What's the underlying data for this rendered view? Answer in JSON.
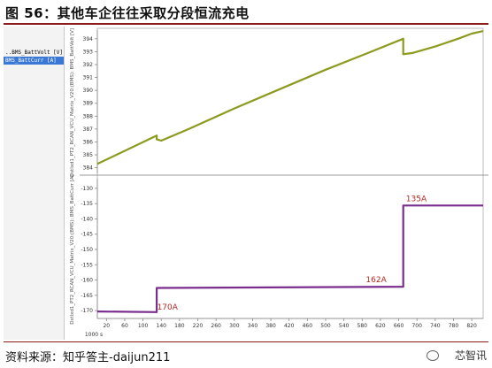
{
  "header": {
    "title": "图 56：其他车企往往采取分段恒流充电"
  },
  "footer": {
    "source": "资料来源：知乎答主-daijun211",
    "watermark": "芯智讯"
  },
  "signal_list": {
    "items": [
      "..BMS_BattVolt [V]",
      "BMS_BattCurr [A]"
    ],
    "selected_index": 1
  },
  "colors": {
    "voltage": "#8c9a1e",
    "current": "#7b2d8e",
    "rule": "#8b1a1a",
    "label": "#b5281f"
  },
  "chart_data": [
    {
      "type": "line",
      "ylabel": "Dstlxd1_PT2_RCAN_VCU_Matrix_V20:(BMS): BMS_BattVolt [V]",
      "ylim": [
        383.7,
        394.4
      ],
      "yticks": [
        384,
        385,
        386,
        387,
        388,
        389,
        390,
        391,
        392,
        393,
        394
      ],
      "xlim": [
        0,
        845
      ],
      "series": [
        {
          "x": [
            0,
            130,
            130,
            140,
            200,
            300,
            400,
            500,
            600,
            670,
            670,
            690,
            740,
            790,
            820,
            845
          ],
          "y": [
            384.3,
            386.5,
            386.2,
            386.1,
            387.0,
            388.6,
            390.1,
            391.6,
            393.0,
            394.0,
            392.8,
            392.9,
            393.4,
            394.0,
            394.4,
            394.6
          ]
        }
      ]
    },
    {
      "type": "line",
      "ylabel": "Dstlxd1_PT2_RCAN_VCU_Matrix_V20:(BMS): BMS_BattCurr [A]",
      "ylim": [
        -172,
        -128
      ],
      "yticks": [
        -130,
        -135,
        -140,
        -145,
        -150,
        -155,
        -160,
        -165,
        -170
      ],
      "xlim": [
        0,
        845
      ],
      "xticks": [
        20,
        60,
        100,
        140,
        180,
        220,
        260,
        300,
        340,
        380,
        420,
        460,
        500,
        540,
        580,
        620,
        660,
        700,
        740,
        780,
        820
      ],
      "xlabel": "1000 s",
      "series": [
        {
          "x": [
            0,
            130,
            130,
            670,
            670,
            845
          ],
          "y": [
            -170.3,
            -170.5,
            -162.6,
            -162.2,
            -135.6,
            -135.6
          ]
        }
      ],
      "annotations": [
        {
          "text": "170A",
          "x": 131,
          "y": -169.7
        },
        {
          "text": "162A",
          "x": 588,
          "y": -160.7
        },
        {
          "text": "135A",
          "x": 676,
          "y": -134.2
        }
      ]
    }
  ]
}
